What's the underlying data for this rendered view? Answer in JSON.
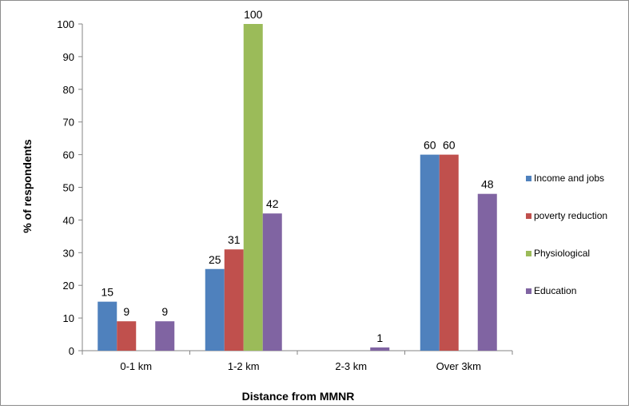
{
  "chart_data": {
    "type": "bar",
    "title": "",
    "xlabel": "Distance from MMNR",
    "ylabel": "% of respondents",
    "ylim": [
      0,
      100
    ],
    "yticks": [
      0,
      10,
      20,
      30,
      40,
      50,
      60,
      70,
      80,
      90,
      100
    ],
    "grid": false,
    "legend_position": "right",
    "categories": [
      "0-1 km",
      "1-2 km",
      "2-3 km",
      "Over 3km"
    ],
    "series": [
      {
        "name": "Income and jobs",
        "color": "#4F81BD",
        "values": [
          15,
          25,
          0,
          60
        ],
        "labels": [
          "15",
          "25",
          "",
          "60"
        ]
      },
      {
        "name": "poverty reduction",
        "color": "#C0504D",
        "values": [
          9,
          31,
          0,
          60
        ],
        "labels": [
          "9",
          "31",
          "",
          "60"
        ]
      },
      {
        "name": "Physiological",
        "color": "#9BBB59",
        "values": [
          0,
          100,
          0,
          0
        ],
        "labels": [
          "",
          "100",
          "",
          ""
        ]
      },
      {
        "name": "Education",
        "color": "#8064A2",
        "values": [
          9,
          42,
          1,
          48
        ],
        "labels": [
          "9",
          "42",
          "1",
          "48"
        ]
      }
    ]
  }
}
